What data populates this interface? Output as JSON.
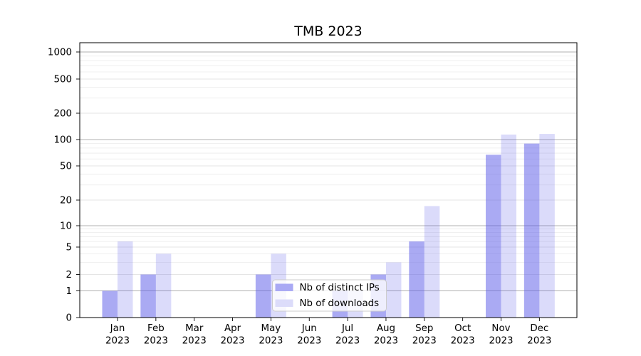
{
  "chart_data": {
    "type": "bar",
    "title": "TMB 2023",
    "categories": [
      "Jan 2023",
      "Feb 2023",
      "Mar 2023",
      "Apr 2023",
      "May 2023",
      "Jun 2023",
      "Jul 2023",
      "Aug 2023",
      "Sep 2023",
      "Oct 2023",
      "Nov 2023",
      "Dec 2023"
    ],
    "series": [
      {
        "name": "Nb of distinct IPs",
        "values": [
          1,
          2,
          0,
          0,
          2,
          0,
          1,
          2,
          6,
          0,
          67,
          90
        ],
        "fill_opacity": 0.5,
        "swatch_color": "#a9a9f4"
      },
      {
        "name": "Nb of downloads",
        "values": [
          6,
          4,
          0,
          0,
          4,
          0,
          1,
          3,
          17,
          0,
          114,
          116
        ],
        "fill_opacity": 0.21,
        "swatch_color": "#dcdcfa"
      }
    ],
    "bar_base_color": "#5555e8",
    "yticks": [
      0,
      1,
      2,
      5,
      10,
      20,
      50,
      100,
      200,
      500,
      1000
    ],
    "y_scale": "symlog",
    "ylim": [
      0,
      1300
    ],
    "xlabel": "",
    "ylabel": "",
    "grid": true,
    "legend_position": "lower center",
    "colors": {
      "grid_major": "#b0b0b0",
      "grid_labeled_minor": "#dcdcdc",
      "grid_minor": "#ebebeb",
      "spine": "#000000",
      "legend_border": "#cccccc",
      "legend_background": "#ffffff"
    }
  }
}
